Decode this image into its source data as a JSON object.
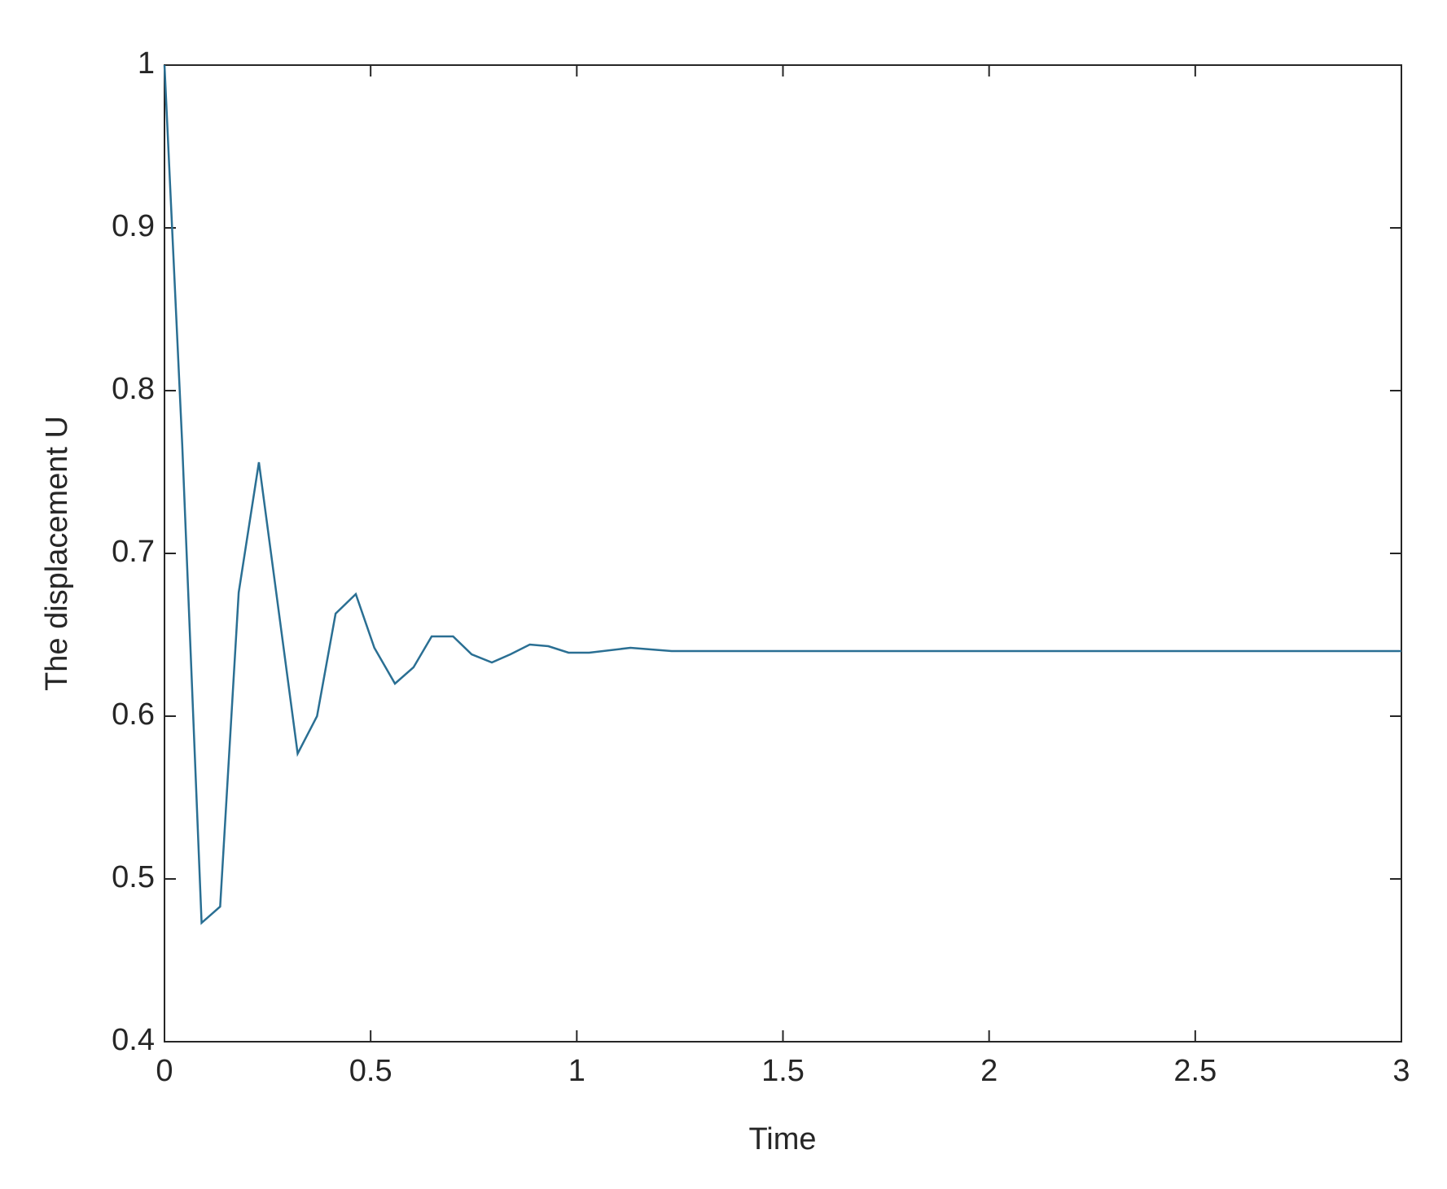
{
  "chart_data": {
    "type": "line",
    "xlabel": "Time",
    "ylabel": "The displacement U",
    "x": [
      0,
      0.043,
      0.09,
      0.135,
      0.18,
      0.229,
      0.323,
      0.37,
      0.415,
      0.464,
      0.509,
      0.559,
      0.604,
      0.648,
      0.7,
      0.745,
      0.794,
      0.839,
      0.886,
      0.931,
      0.98,
      1.03,
      1.13,
      1.23,
      3
    ],
    "series": [
      {
        "color": "#2a6f93",
        "values": [
          1.0,
          0.767,
          0.473,
          0.483,
          0.676,
          0.756,
          0.577,
          0.6,
          0.663,
          0.675,
          0.642,
          0.62,
          0.63,
          0.649,
          0.649,
          0.638,
          0.633,
          0.638,
          0.644,
          0.643,
          0.639,
          0.639,
          0.642,
          0.64,
          0.64
        ]
      }
    ],
    "xlim": [
      0,
      3
    ],
    "ylim": [
      0.4,
      1
    ],
    "xticks": [
      0,
      0.5,
      1,
      1.5,
      2,
      2.5,
      3
    ],
    "yticks": [
      0.4,
      0.5,
      0.6,
      0.7,
      0.8,
      0.9,
      1
    ],
    "grid": false
  }
}
